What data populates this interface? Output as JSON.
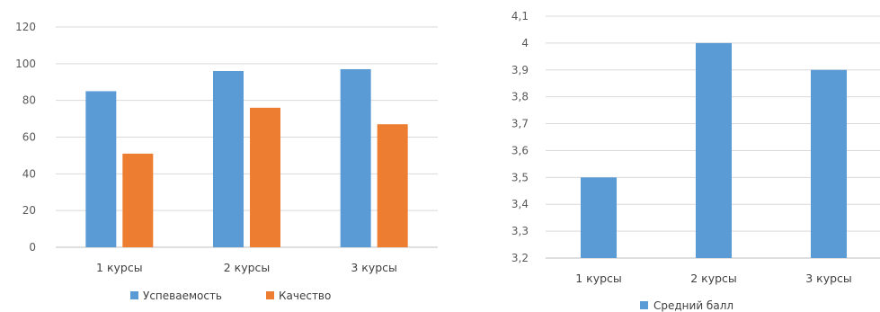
{
  "chart_data": [
    {
      "type": "bar",
      "categories": [
        "1 курсы",
        "2 курсы",
        "3 курсы"
      ],
      "series": [
        {
          "name": "Успеваемость",
          "values": [
            85,
            96,
            97
          ],
          "color": "#5b9bd5"
        },
        {
          "name": "Качество",
          "values": [
            51,
            76,
            67
          ],
          "color": "#ed7d31"
        }
      ],
      "ylim": [
        0,
        120
      ],
      "yticks": [
        0,
        20,
        40,
        60,
        80,
        100,
        120
      ],
      "grid": true,
      "legend": "bottom"
    },
    {
      "type": "bar",
      "categories": [
        "1 курсы",
        "2 курсы",
        "3 курсы"
      ],
      "series": [
        {
          "name": "Средний балл",
          "values": [
            3.5,
            4.0,
            3.9
          ],
          "color": "#5b9bd5"
        }
      ],
      "ylim": [
        3.2,
        4.1
      ],
      "yticks": [
        "3,2",
        "3,3",
        "3,4",
        "3,5",
        "3,6",
        "3,7",
        "3,8",
        "3,9",
        "4",
        "4,1"
      ],
      "grid": true,
      "legend": "bottom"
    }
  ]
}
